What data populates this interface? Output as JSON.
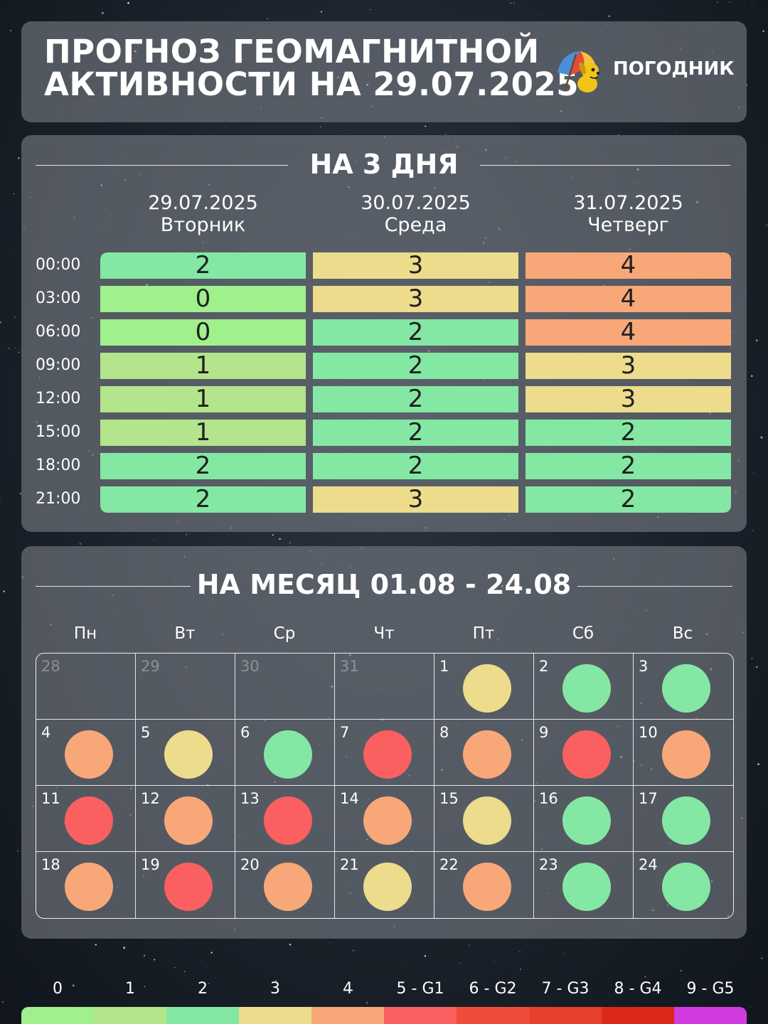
{
  "colors": {
    "0": "#a0f08c",
    "1": "#b4e48c",
    "2": "#84e8a4",
    "3": "#ecdc8c",
    "4": "#f8a878",
    "G1": "#fa6060",
    "G2": "#f04c3a",
    "G3": "#e8402c",
    "G4": "#dc2818",
    "G5": "#d03ce0"
  },
  "header": {
    "title_line1": "ПРОГНОЗ ГЕОМАГНИТНОЙ",
    "title_line2": "АКТИВНОСТИ НА 29.07.2025",
    "brand": "ПОГОДНИК",
    "logo_icon": "dog-umbrella-icon"
  },
  "three_day": {
    "title": "НА 3 ДНЯ",
    "days": [
      {
        "date": "29.07.2025",
        "weekday": "Вторник"
      },
      {
        "date": "30.07.2025",
        "weekday": "Среда"
      },
      {
        "date": "31.07.2025",
        "weekday": "Четверг"
      }
    ],
    "times": [
      "00:00",
      "03:00",
      "06:00",
      "09:00",
      "12:00",
      "15:00",
      "18:00",
      "21:00"
    ],
    "values": [
      [
        2,
        3,
        4
      ],
      [
        0,
        3,
        4
      ],
      [
        0,
        2,
        4
      ],
      [
        1,
        2,
        3
      ],
      [
        1,
        2,
        3
      ],
      [
        1,
        2,
        2
      ],
      [
        2,
        2,
        2
      ],
      [
        2,
        3,
        2
      ]
    ]
  },
  "month": {
    "title": "НА МЕСЯЦ 01.08 - 24.08",
    "weekdays": [
      "Пн",
      "Вт",
      "Ср",
      "Чт",
      "Пт",
      "Сб",
      "Вс"
    ],
    "days": [
      {
        "day": "28",
        "level": null,
        "muted": true
      },
      {
        "day": "29",
        "level": null,
        "muted": true
      },
      {
        "day": "30",
        "level": null,
        "muted": true
      },
      {
        "day": "31",
        "level": null,
        "muted": true
      },
      {
        "day": "1",
        "level": "3"
      },
      {
        "day": "2",
        "level": "2"
      },
      {
        "day": "3",
        "level": "2"
      },
      {
        "day": "4",
        "level": "4"
      },
      {
        "day": "5",
        "level": "3"
      },
      {
        "day": "6",
        "level": "2"
      },
      {
        "day": "7",
        "level": "G1"
      },
      {
        "day": "8",
        "level": "4"
      },
      {
        "day": "9",
        "level": "G1"
      },
      {
        "day": "10",
        "level": "4"
      },
      {
        "day": "11",
        "level": "G1"
      },
      {
        "day": "12",
        "level": "4"
      },
      {
        "day": "13",
        "level": "G1"
      },
      {
        "day": "14",
        "level": "4"
      },
      {
        "day": "15",
        "level": "3"
      },
      {
        "day": "16",
        "level": "2"
      },
      {
        "day": "17",
        "level": "2"
      },
      {
        "day": "18",
        "level": "4"
      },
      {
        "day": "19",
        "level": "G1"
      },
      {
        "day": "20",
        "level": "4"
      },
      {
        "day": "21",
        "level": "3"
      },
      {
        "day": "22",
        "level": "4"
      },
      {
        "day": "23",
        "level": "2"
      },
      {
        "day": "24",
        "level": "2"
      }
    ]
  },
  "scale": [
    {
      "label": "0",
      "key": "0"
    },
    {
      "label": "1",
      "key": "1"
    },
    {
      "label": "2",
      "key": "2"
    },
    {
      "label": "3",
      "key": "3"
    },
    {
      "label": "4",
      "key": "4"
    },
    {
      "label": "5 - G1",
      "key": "G1"
    },
    {
      "label": "6 - G2",
      "key": "G2"
    },
    {
      "label": "7 - G3",
      "key": "G3"
    },
    {
      "label": "8 - G4",
      "key": "G4"
    },
    {
      "label": "9 - G5",
      "key": "G5"
    }
  ]
}
